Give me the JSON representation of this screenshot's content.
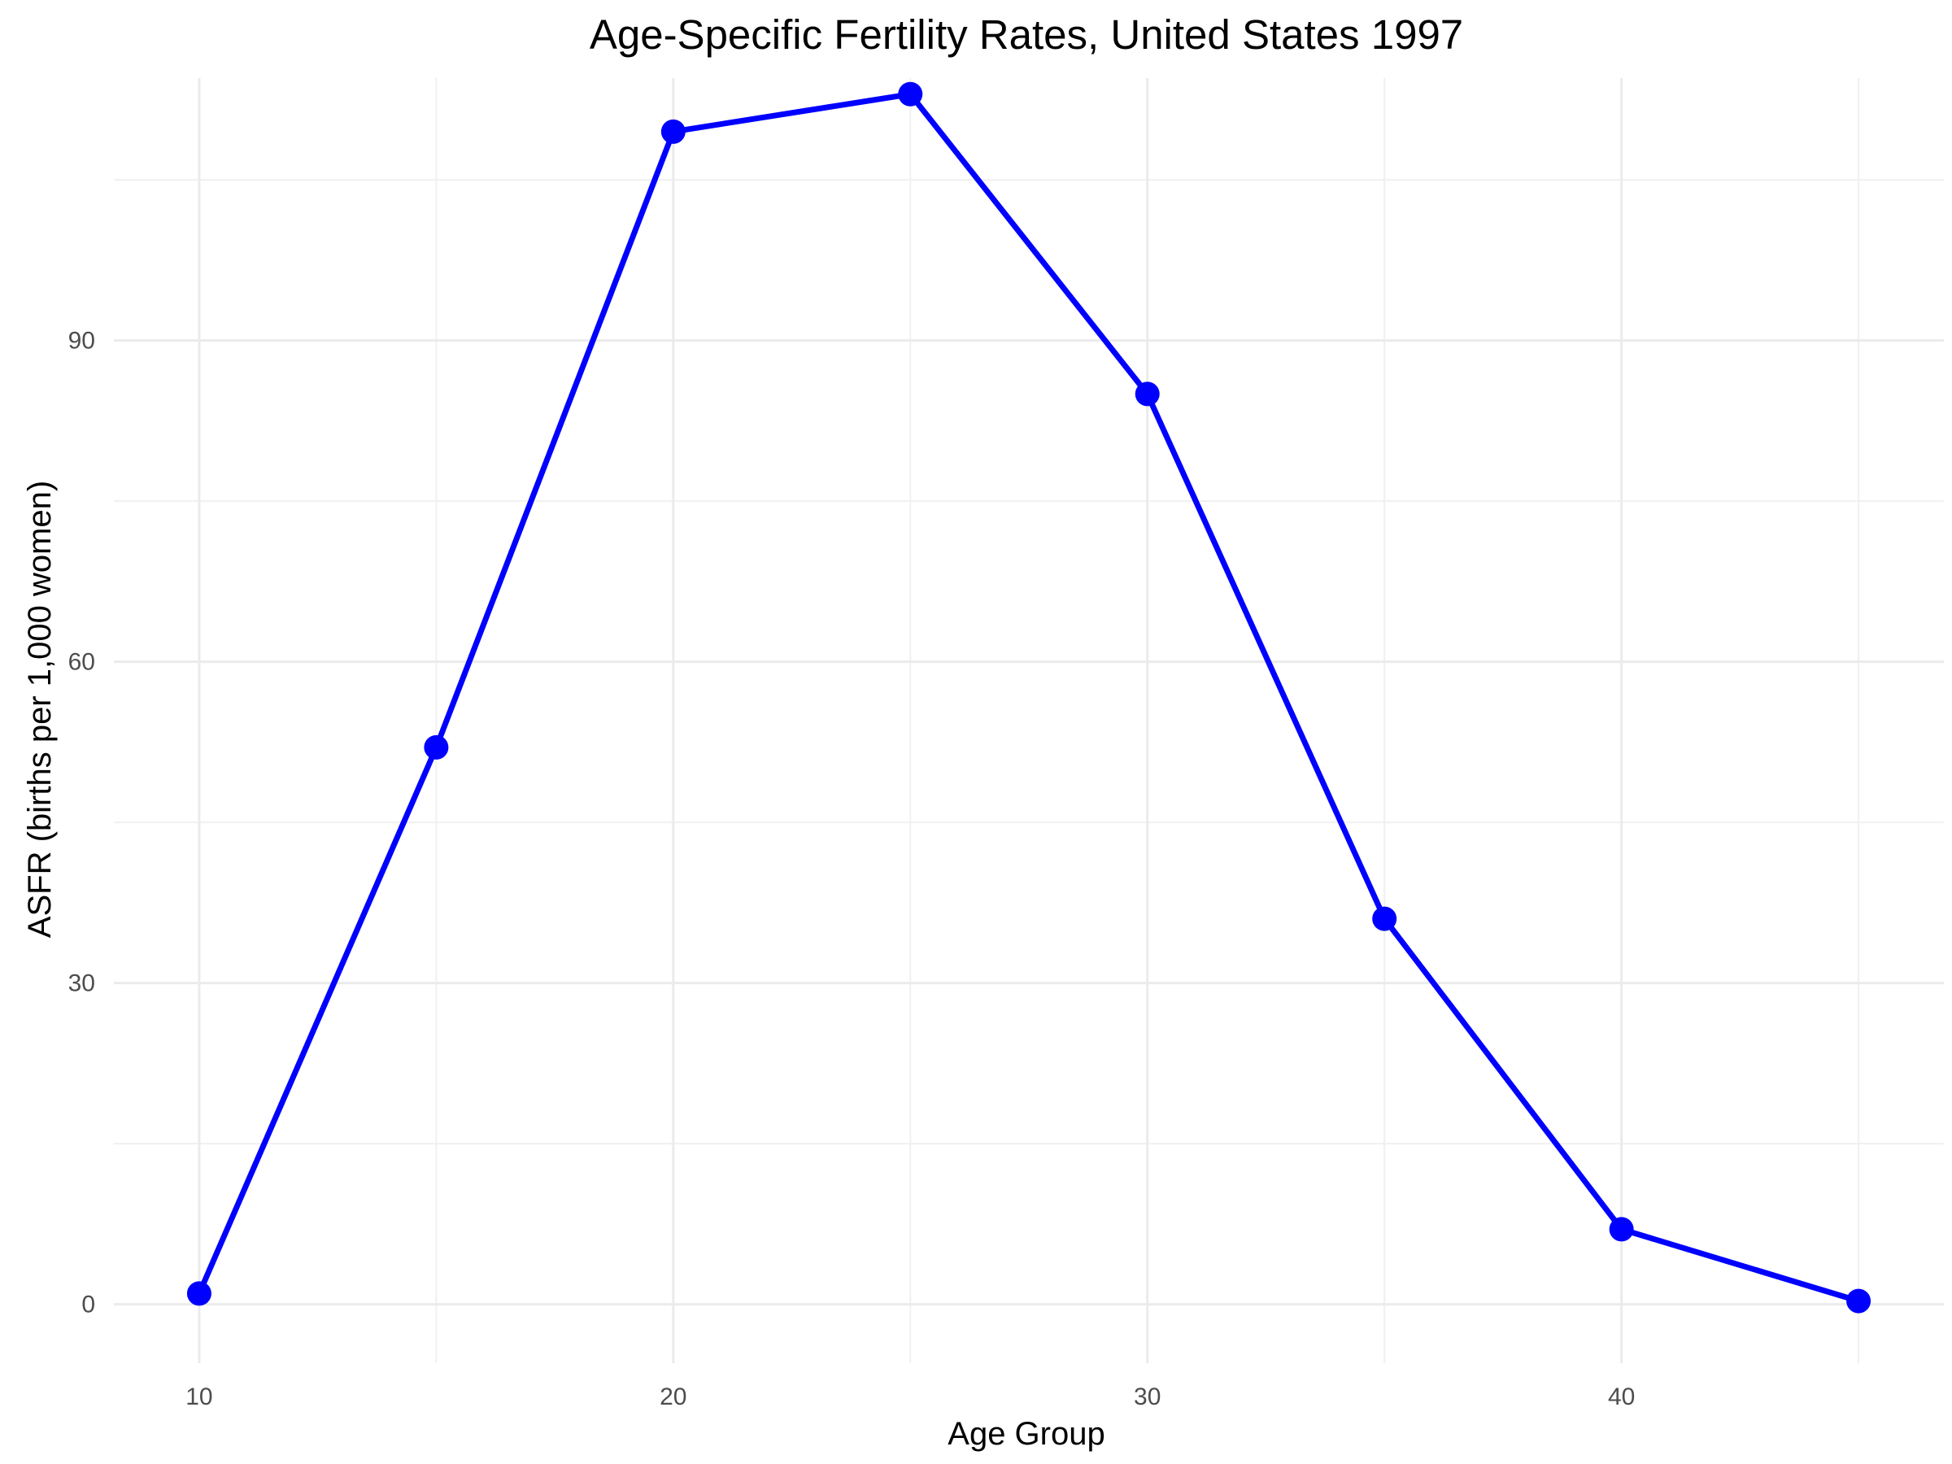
{
  "chart_data": {
    "type": "line",
    "title": "Age-Specific Fertility Rates, United States 1997",
    "xlabel": "Age Group",
    "ylabel": "ASFR (births per 1,000 women)",
    "xlim": [
      8.2,
      46.8
    ],
    "ylim": [
      -5.5,
      114.5
    ],
    "x_ticks": [
      10,
      20,
      30,
      40
    ],
    "x_minor_ticks": [
      15,
      25,
      35,
      45
    ],
    "y_ticks": [
      0,
      30,
      60,
      90
    ],
    "y_minor_ticks": [
      15,
      45,
      75,
      105
    ],
    "grid": true,
    "legend": "none",
    "series": [
      {
        "color": "#0000ff",
        "x": [
          10,
          15,
          20,
          25,
          30,
          35,
          40,
          45
        ],
        "y": [
          1.0,
          52.0,
          109.5,
          113.0,
          85.0,
          36.0,
          7.0,
          0.3
        ]
      }
    ]
  }
}
